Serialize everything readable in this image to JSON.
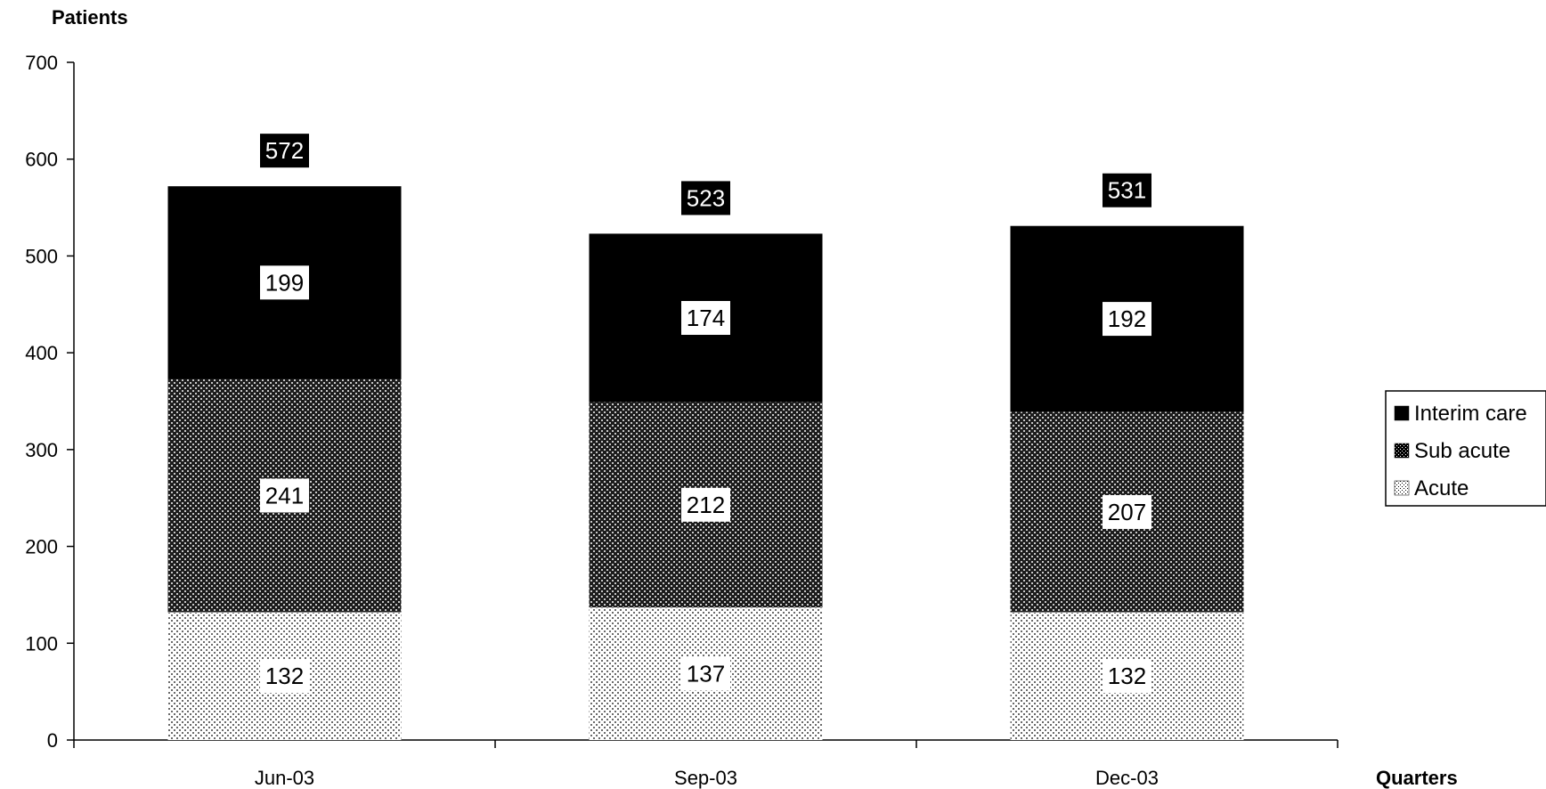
{
  "chart_data": {
    "type": "bar",
    "stacked": true,
    "ylabel": "Patients",
    "xlabel": "Quarters",
    "ylim": [
      0,
      700
    ],
    "yticks": [
      0,
      100,
      200,
      300,
      400,
      500,
      600,
      700
    ],
    "categories": [
      "Jun-03",
      "Sep-03",
      "Dec-03"
    ],
    "series": [
      {
        "name": "Acute",
        "values": [
          132,
          137,
          132
        ],
        "pattern": "light-dotted",
        "color": "#ffffff"
      },
      {
        "name": "Sub acute",
        "values": [
          241,
          212,
          207
        ],
        "pattern": "dark-checkered",
        "color": "#3a3a3a"
      },
      {
        "name": "Interim care",
        "values": [
          199,
          174,
          192
        ],
        "pattern": "solid",
        "color": "#000000"
      }
    ],
    "totals": [
      572,
      523,
      531
    ],
    "legend_position": "right",
    "grid": false
  }
}
